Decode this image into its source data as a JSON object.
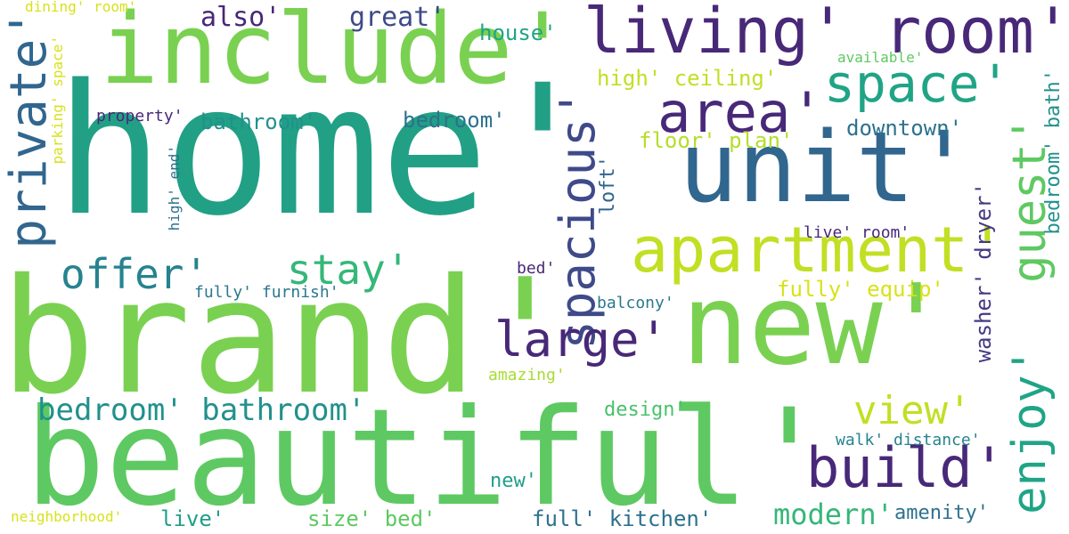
{
  "words": [
    {
      "text": "home'",
      "color": "#21a085",
      "orientation": "horizontal"
    },
    {
      "text": "brand'",
      "color": "#7ad151",
      "orientation": "horizontal"
    },
    {
      "text": "beautiful'",
      "color": "#5ec962",
      "orientation": "horizontal"
    },
    {
      "text": "new'",
      "color": "#7ad151",
      "orientation": "horizontal"
    },
    {
      "text": "include'",
      "color": "#7ad151",
      "orientation": "horizontal"
    },
    {
      "text": "unit'",
      "color": "#31668e",
      "orientation": "horizontal"
    },
    {
      "text": "living' room'",
      "color": "#482878",
      "orientation": "horizontal"
    },
    {
      "text": "apartment'",
      "color": "#c2df23",
      "orientation": "horizontal"
    },
    {
      "text": "private'",
      "color": "#31668e",
      "orientation": "vertical"
    },
    {
      "text": "spacious'",
      "color": "#3e4a89",
      "orientation": "vertical"
    },
    {
      "text": "guest'",
      "color": "#5ec962",
      "orientation": "vertical"
    },
    {
      "text": "enjoy'",
      "color": "#20a486",
      "orientation": "vertical"
    },
    {
      "text": "build'",
      "color": "#482878",
      "orientation": "horizontal"
    },
    {
      "text": "area'",
      "color": "#482878",
      "orientation": "horizontal"
    },
    {
      "text": "space'",
      "color": "#20a486",
      "orientation": "horizontal"
    },
    {
      "text": "large'",
      "color": "#482878",
      "orientation": "horizontal"
    },
    {
      "text": "view'",
      "color": "#c2df23",
      "orientation": "horizontal"
    },
    {
      "text": "offer'",
      "color": "#25838e",
      "orientation": "horizontal"
    },
    {
      "text": "stay'",
      "color": "#35b779",
      "orientation": "horizontal"
    },
    {
      "text": "bedroom' bathroom'",
      "color": "#21918c",
      "orientation": "horizontal"
    },
    {
      "text": "modern'",
      "color": "#35b779",
      "orientation": "horizontal"
    },
    {
      "text": "also'",
      "color": "#482878",
      "orientation": "horizontal"
    },
    {
      "text": "great'",
      "color": "#3e4a89",
      "orientation": "horizontal"
    },
    {
      "text": "house'",
      "color": "#20a486",
      "orientation": "horizontal"
    },
    {
      "text": "bathroom'",
      "color": "#21918c",
      "orientation": "horizontal"
    },
    {
      "text": "bedroom'",
      "color": "#2c728e",
      "orientation": "horizontal"
    },
    {
      "text": "downtown'",
      "color": "#2c728e",
      "orientation": "horizontal"
    },
    {
      "text": "high' ceiling'",
      "color": "#c2df23",
      "orientation": "horizontal"
    },
    {
      "text": "floor' plan'",
      "color": "#b5de2b",
      "orientation": "horizontal"
    },
    {
      "text": "fully' equip'",
      "color": "#d8e219",
      "orientation": "horizontal"
    },
    {
      "text": "washer' dryer'",
      "color": "#443983",
      "orientation": "vertical"
    },
    {
      "text": "bedroom' bath'",
      "color": "#21918c",
      "orientation": "vertical"
    },
    {
      "text": "design'",
      "color": "#4ac16d",
      "orientation": "horizontal"
    },
    {
      "text": "new'",
      "color": "#1f9e89",
      "orientation": "horizontal"
    },
    {
      "text": "live'",
      "color": "#1f9e89",
      "orientation": "horizontal"
    },
    {
      "text": "size' bed'",
      "color": "#5ec962",
      "orientation": "horizontal"
    },
    {
      "text": "full' kitchen'",
      "color": "#2c728e",
      "orientation": "horizontal"
    },
    {
      "text": "amenity'",
      "color": "#2c728e",
      "orientation": "horizontal"
    },
    {
      "text": "walk' distance'",
      "color": "#25838e",
      "orientation": "horizontal"
    },
    {
      "text": "live' room'",
      "color": "#482878",
      "orientation": "horizontal"
    },
    {
      "text": "bed'",
      "color": "#482878",
      "orientation": "horizontal"
    },
    {
      "text": "balcony'",
      "color": "#2a788e",
      "orientation": "horizontal"
    },
    {
      "text": "amazing'",
      "color": "#a8db34",
      "orientation": "horizontal"
    },
    {
      "text": "fully' furnish'",
      "color": "#2a788e",
      "orientation": "horizontal"
    },
    {
      "text": "property'",
      "color": "#482878",
      "orientation": "horizontal"
    },
    {
      "text": "loft'",
      "color": "#31668e",
      "orientation": "vertical"
    },
    {
      "text": "high' end'",
      "color": "#2c728e",
      "orientation": "vertical"
    },
    {
      "text": "parking' space'",
      "color": "#d8e219",
      "orientation": "vertical"
    },
    {
      "text": "available'",
      "color": "#5ec962",
      "orientation": "horizontal"
    },
    {
      "text": "dining' room'",
      "color": "#d8e219",
      "orientation": "horizontal"
    },
    {
      "text": "neighborhood'",
      "color": "#d8e219",
      "orientation": "horizontal"
    }
  ]
}
